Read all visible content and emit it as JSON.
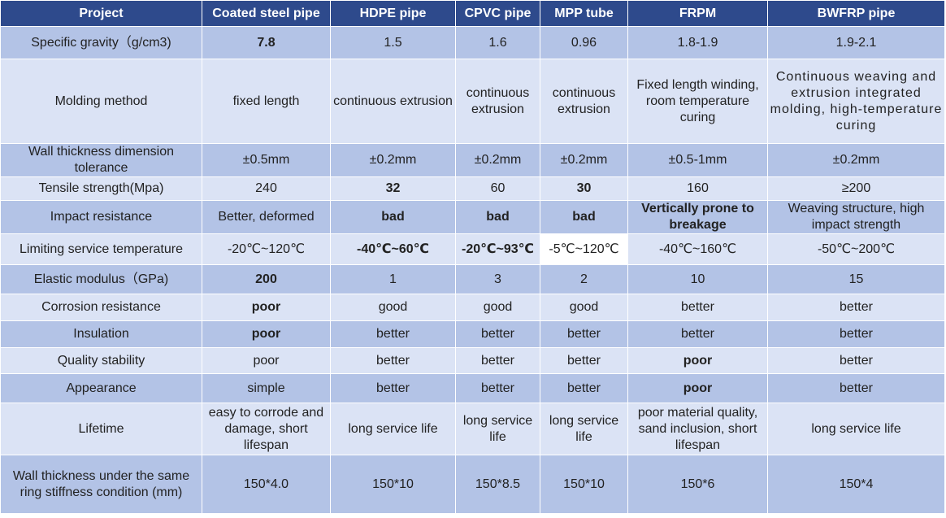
{
  "header": [
    "Project",
    "Coated steel pipe",
    "HDPE pipe",
    "CPVC pipe",
    "MPP tube",
    "FRPM",
    "BWFRP pipe"
  ],
  "rows": [
    {
      "label": "Specific gravity（g/cm3)",
      "cells": [
        "7.8",
        "1.5",
        "1.6",
        "0.96",
        "1.8-1.9",
        "1.9-2.1"
      ]
    },
    {
      "label": "Molding method",
      "cells": [
        "fixed length",
        "continuous extrusion",
        "continuous extrusion",
        "continuous extrusion",
        "Fixed length winding, room temperature curing",
        "Continuous weaving and extrusion integrated molding, high-temperature curing"
      ]
    },
    {
      "label": "Wall thickness dimension tolerance",
      "cells": [
        "±0.5mm",
        "±0.2mm",
        "±0.2mm",
        "±0.2mm",
        "±0.5-1mm",
        "±0.2mm"
      ]
    },
    {
      "label": "Tensile strength(Mpa)",
      "cells": [
        "240",
        "32",
        "60",
        "30",
        "160",
        "≥200"
      ]
    },
    {
      "label": "Impact resistance",
      "cells": [
        "Better, deformed",
        "bad",
        "bad",
        "bad",
        "Vertically prone to breakage",
        "Weaving structure, high impact strength"
      ]
    },
    {
      "label": "Limiting service temperature",
      "cells": [
        "-20℃~120℃",
        "-40℃~60℃",
        "-20℃~93℃",
        "-5℃~120℃",
        "-40℃~160℃",
        "-50℃~200℃"
      ]
    },
    {
      "label": "Elastic modulus（GPa)",
      "cells": [
        "200",
        "1",
        "3",
        "2",
        "10",
        "15"
      ]
    },
    {
      "label": "Corrosion resistance",
      "cells": [
        "poor",
        "good",
        "good",
        "good",
        "better",
        "better"
      ]
    },
    {
      "label": "Insulation",
      "cells": [
        "poor",
        "better",
        "better",
        "better",
        "better",
        "better"
      ]
    },
    {
      "label": "Quality stability",
      "cells": [
        "poor",
        "better",
        "better",
        "better",
        "poor",
        "better"
      ]
    },
    {
      "label": "Appearance",
      "cells": [
        "simple",
        "better",
        "better",
        "better",
        "poor",
        "better"
      ]
    },
    {
      "label": "Lifetime",
      "cells": [
        "easy to corrode and damage, short lifespan",
        "long service life",
        "long service life",
        "long service life",
        "poor material quality, sand inclusion, short lifespan",
        "long service life"
      ]
    },
    {
      "label": "Wall thickness under the same ring stiffness condition (mm)",
      "cells": [
        "150*4.0",
        "150*10",
        "150*8.5",
        "150*10",
        "150*6",
        "150*4"
      ]
    }
  ],
  "colors": {
    "header_bg": "#2e4a8c",
    "row_dark": "#b3c3e6",
    "row_light": "#dbe3f5",
    "highlight_white": "#ffffff"
  }
}
